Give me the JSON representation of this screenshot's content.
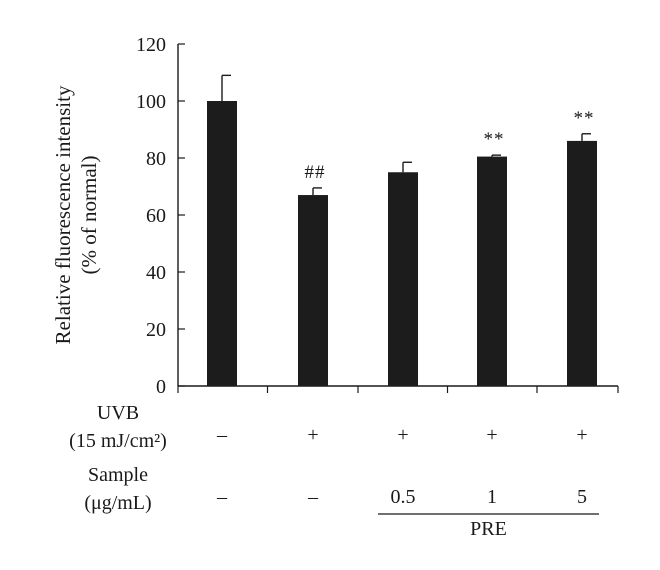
{
  "chart_data": {
    "type": "bar",
    "ylabel": [
      "Relative fluorescence intensity",
      "(% of normal)"
    ],
    "ylim": [
      0,
      120
    ],
    "yticks": [
      0,
      20,
      40,
      60,
      80,
      100,
      120
    ],
    "grid": false,
    "bar_color": "#1c1c1c",
    "values": [
      100,
      67,
      75,
      80.5,
      86
    ],
    "errors": [
      9,
      2.5,
      3.5,
      0.5,
      2.5
    ],
    "annotations": [
      "",
      "##",
      "",
      "**",
      "**"
    ],
    "conditions": [
      {
        "label_lines": [
          "UVB",
          "(15 mJ/cm²)"
        ],
        "values": [
          "–",
          "+",
          "+",
          "+",
          "+"
        ]
      },
      {
        "label_lines": [
          "Sample",
          "(μg/mL)"
        ],
        "values": [
          "–",
          "–",
          "0.5",
          "1",
          "5"
        ]
      }
    ],
    "group_label": "PRE",
    "group_span": [
      2,
      4
    ]
  }
}
